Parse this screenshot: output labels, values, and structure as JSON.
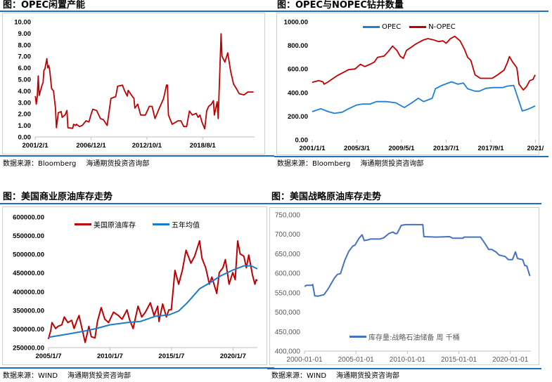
{
  "charts": [
    {
      "title": "图：OPEC闲置产能",
      "source": "数据来源：Bloomberg",
      "org": "海通期货投资咨询部",
      "chart_data": {
        "type": "line",
        "title": "图：OPEC闲置产能",
        "xlim": [
          2001.08,
          2024.0
        ],
        "ylim": [
          0,
          10
        ],
        "x_ticks": [
          2001.08,
          2006.92,
          2012.75,
          2018.58
        ],
        "x_tick_labels": [
          "2001/2/1",
          "2006/12/1",
          "2012/10/1",
          "2018/8/1"
        ],
        "y_ticks": [
          0,
          1,
          2,
          3,
          4,
          5,
          6,
          7,
          8,
          9,
          10
        ],
        "y_tick_labels": [
          "0.00",
          "1.00",
          "2.00",
          "3.00",
          "4.00",
          "5.00",
          "6.00",
          "7.00",
          "8.00",
          "9.00",
          "10.00"
        ],
        "legend": "none",
        "series": [
          {
            "name": "OPEC闲置产能",
            "color": "#C00000",
            "x": [
              2001.1,
              2001.2,
              2001.3,
              2001.4,
              2001.5,
              2001.8,
              2001.9,
              2002.0,
              2002.1,
              2002.3,
              2002.4,
              2002.5,
              2002.6,
              2002.8,
              2003.0,
              2003.2,
              2003.3,
              2003.5,
              2003.8,
              2003.9,
              2004.2,
              2004.4,
              2004.5,
              2005.0,
              2005.1,
              2005.3,
              2005.4,
              2005.7,
              2006.0,
              2006.4,
              2006.7,
              2006.9,
              2007.1,
              2007.5,
              2007.9,
              2008.2,
              2008.6,
              2009.0,
              2009.5,
              2009.7,
              2010.2,
              2010.4,
              2010.7,
              2010.8,
              2011.2,
              2011.4,
              2011.5,
              2011.8,
              2012.1,
              2012.6,
              2013.0,
              2013.3,
              2013.6,
              2014.0,
              2014.5,
              2014.8,
              2014.9,
              2015.0,
              2015.4,
              2016.0,
              2016.3,
              2016.6,
              2016.9,
              2017.2,
              2017.5,
              2017.9,
              2018.1,
              2018.3,
              2018.5,
              2018.8,
              2019.0,
              2019.2,
              2019.5,
              2019.7,
              2019.8,
              2020.1,
              2020.2,
              2020.5,
              2020.6,
              2020.9,
              2021.2,
              2021.5,
              2021.8,
              2022.1,
              2022.4,
              2022.9,
              2023.3,
              2023.9
            ],
            "y": [
              3.55,
              2.85,
              3.5,
              5.3,
              3.6,
              4.5,
              4.7,
              5.8,
              5.9,
              6.8,
              6.0,
              6.2,
              5.8,
              4.2,
              4.0,
              2.5,
              0.8,
              2.1,
              2.2,
              1.7,
              1.9,
              2.3,
              0.8,
              0.75,
              1.1,
              1.0,
              1.1,
              0.9,
              1.0,
              1.4,
              1.3,
              1.9,
              2.4,
              2.3,
              1.6,
              1.5,
              1.0,
              3.35,
              3.5,
              4.4,
              4.5,
              4.05,
              3.55,
              4.05,
              3.55,
              3.35,
              2.5,
              2.85,
              1.9,
              1.9,
              2.65,
              2.65,
              1.6,
              2.4,
              3.35,
              4.5,
              4.5,
              1.9,
              1.1,
              1.4,
              1.4,
              0.9,
              0.9,
              2.25,
              1.9,
              2.05,
              1.7,
              1.9,
              1.3,
              0.7,
              2.25,
              2.65,
              2.85,
              3.15,
              1.9,
              3.05,
              1.6,
              8.95,
              7.0,
              6.5,
              7.3,
              5.7,
              4.6,
              4.2,
              3.75,
              3.65,
              3.9,
              3.9
            ]
          }
        ]
      }
    },
    {
      "title": "图：OPEC与NOPEC钻井数量",
      "source": "数据来源：Bloomberg",
      "org": "海通期货投资咨询部",
      "chart_data": {
        "type": "line",
        "title": "图：OPEC与NOPEC钻井数量",
        "xlim": [
          2001.0,
          2022.0
        ],
        "ylim": [
          0,
          1000
        ],
        "x_ticks": [
          2001.0,
          2005.17,
          2009.33,
          2013.5,
          2017.67,
          2021.83
        ],
        "x_tick_labels": [
          "2001/1/1",
          "2005/3/1",
          "2009/5/1",
          "2013/7/1",
          "2017/9/1",
          "2021/"
        ],
        "y_ticks": [
          0,
          200,
          400,
          600,
          800,
          1000
        ],
        "y_tick_labels": [
          "0.00",
          "200.00",
          "400.00",
          "600.00",
          "800.00",
          "1000.00"
        ],
        "legend": "top",
        "series": [
          {
            "name": "OPEC",
            "color": "#1F7FD6",
            "x": [
              2001.0,
              2001.8,
              2002.5,
              2003.1,
              2003.8,
              2004.4,
              2005.1,
              2005.7,
              2006.4,
              2007.0,
              2007.9,
              2008.8,
              2009.6,
              2010.3,
              2010.9,
              2011.4,
              2012.2,
              2012.5,
              2013.1,
              2014.0,
              2014.6,
              2015.1,
              2015.5,
              2016.2,
              2016.6,
              2017.2,
              2017.9,
              2018.8,
              2019.2,
              2019.8,
              2020.2,
              2020.6,
              2021.0,
              2021.5,
              2021.8
            ],
            "y": [
              238,
              263,
              238,
              224,
              234,
              263,
              293,
              303,
              303,
              323,
              323,
              313,
              273,
              313,
              352,
              323,
              352,
              432,
              461,
              491,
              471,
              481,
              432,
              412,
              412,
              436,
              442,
              442,
              455,
              461,
              352,
              244,
              254,
              273,
              287
            ]
          },
          {
            "name": "N-OPEC",
            "color": "#C00000",
            "x": [
              2001.0,
              2001.6,
              2002.0,
              2002.1,
              2002.5,
              2002.8,
              2003.3,
              2003.9,
              2004.4,
              2005.0,
              2005.5,
              2005.9,
              2006.4,
              2006.8,
              2007.1,
              2007.7,
              2008.1,
              2008.5,
              2008.9,
              2009.2,
              2009.5,
              2009.8,
              2010.3,
              2010.6,
              2011.0,
              2011.4,
              2011.8,
              2012.3,
              2012.8,
              2013.2,
              2013.5,
              2013.9,
              2014.3,
              2014.8,
              2015.2,
              2015.5,
              2015.8,
              2016.2,
              2016.7,
              2017.2,
              2017.8,
              2018.3,
              2018.9,
              2019.2,
              2019.4,
              2019.7,
              2020.1,
              2020.3,
              2020.7,
              2021.0,
              2021.3,
              2021.6,
              2021.8
            ],
            "y": [
              487,
              501,
              491,
              471,
              491,
              511,
              541,
              570,
              594,
              600,
              640,
              620,
              640,
              659,
              699,
              709,
              748,
              794,
              758,
              709,
              689,
              758,
              788,
              808,
              828,
              847,
              857,
              847,
              832,
              838,
              818,
              857,
              877,
              838,
              768,
              699,
              673,
              550,
              521,
              521,
              521,
              550,
              590,
              650,
              705,
              659,
              610,
              471,
              422,
              451,
              501,
              511,
              550
            ]
          }
        ]
      }
    },
    {
      "title": "图：美国商业原油库存走势",
      "source": "数据来源：WIND",
      "org": "海通期货投资咨询部",
      "chart_data": {
        "type": "line",
        "title": "图：美国商业原油库存走势",
        "xlim": [
          2005.02,
          2022.0
        ],
        "ylim": [
          250000,
          600000
        ],
        "x_ticks": [
          2005.02,
          2010.02,
          2015.02,
          2020.02
        ],
        "x_tick_labels": [
          "2005/1/7",
          "2010/1/7",
          "2015/1/7",
          "2020/1/7"
        ],
        "y_ticks": [
          250000,
          300000,
          350000,
          400000,
          450000,
          500000,
          550000,
          600000
        ],
        "y_tick_labels": [
          "250000.00",
          "300000.00",
          "350000.00",
          "400000.00",
          "450000.00",
          "500000.00",
          "550000.00",
          "600000.00"
        ],
        "legend": "top",
        "series": [
          {
            "name": "美国原油库存",
            "color": "#C00000",
            "x": [
              2005.0,
              2005.2,
              2005.3,
              2005.6,
              2005.8,
              2006.1,
              2006.3,
              2006.6,
              2006.9,
              2007.1,
              2007.3,
              2007.5,
              2007.7,
              2008.0,
              2008.3,
              2008.5,
              2008.8,
              2009.0,
              2009.3,
              2009.6,
              2009.9,
              2010.3,
              2010.7,
              2011.0,
              2011.4,
              2011.6,
              2011.9,
              2012.3,
              2012.6,
              2012.9,
              2013.3,
              2013.6,
              2013.9,
              2014.0,
              2014.3,
              2014.6,
              2014.8,
              2015.0,
              2015.3,
              2015.6,
              2015.9,
              2016.2,
              2016.6,
              2016.9,
              2017.3,
              2017.5,
              2017.8,
              2018.1,
              2018.3,
              2018.7,
              2018.9,
              2019.2,
              2019.4,
              2019.7,
              2020.0,
              2020.2,
              2020.4,
              2020.6,
              2020.9,
              2021.1,
              2021.3,
              2021.6,
              2021.8,
              2021.9,
              2022.0
            ],
            "y": [
              273000,
              295000,
              317000,
              301000,
              307000,
              311000,
              332000,
              317000,
              323000,
              301000,
              320000,
              336000,
              307000,
              264000,
              307000,
              279000,
              276000,
              320000,
              357000,
              326000,
              317000,
              345000,
              336000,
              326000,
              351000,
              326000,
              301000,
              361000,
              332000,
              345000,
              370000,
              336000,
              361000,
              320000,
              367000,
              332000,
              351000,
              351000,
              457000,
              420000,
              457000,
              511000,
              476000,
              495000,
              536000,
              489000,
              464000,
              420000,
              439000,
              395000,
              451000,
              464000,
              486000,
              420000,
              451000,
              432000,
              536000,
              501000,
              495000,
              464000,
              498000,
              445000,
              420000,
              432000,
              429000
            ]
          },
          {
            "name": "五年均值",
            "color": "#1B7CC9",
            "x": [
              2005.0,
              2006.8,
              2007.9,
              2008.9,
              2010.0,
              2011.4,
              2012.5,
              2013.7,
              2014.8,
              2015.6,
              2016.3,
              2017.3,
              2018.1,
              2019.0,
              2020.0,
              2020.9,
              2021.5,
              2022.0
            ],
            "y": [
              277500,
              287500,
              294000,
              301000,
              311000,
              317000,
              320000,
              334000,
              337500,
              348000,
              370000,
              407500,
              423000,
              442000,
              457500,
              469000,
              469000,
              461000
            ]
          }
        ]
      }
    },
    {
      "title": "图：美国战略原油库存走势",
      "source": "数据来源：WIND",
      "org": "海通期货投资咨询部",
      "chart_data": {
        "type": "line",
        "title": "图：美国战略原油库存走势",
        "xlim": [
          2000.0,
          2022.0
        ],
        "ylim": [
          400000,
          750000
        ],
        "x_ticks": [
          2000.0,
          2005.0,
          2010.0,
          2015.0,
          2020.0
        ],
        "x_tick_labels": [
          "2000-01-01",
          "2005-01-01",
          "2010-01-01",
          "2015-01-01",
          "2020-01-01"
        ],
        "y_ticks": [
          400000,
          450000,
          500000,
          550000,
          600000,
          650000,
          700000,
          750000
        ],
        "y_tick_labels": [
          "400,000",
          "450,000",
          "500,000",
          "550,000",
          "600,000",
          "650,000",
          "700,000",
          "750,000"
        ],
        "legend": "bottom",
        "series": [
          {
            "name": "库存量:战略石油储备 周 千桶",
            "color": "#4472C4",
            "x": [
              2000.0,
              2000.2,
              2000.7,
              2000.8,
              2001.0,
              2001.3,
              2001.9,
              2002.3,
              2002.9,
              2003.2,
              2003.5,
              2003.9,
              2004.3,
              2004.7,
              2004.9,
              2005.3,
              2005.6,
              2005.8,
              2006.2,
              2006.4,
              2007.3,
              2007.7,
              2008.2,
              2008.6,
              2008.8,
              2009.0,
              2009.4,
              2009.8,
              2011.5,
              2011.6,
              2012.8,
              2014.1,
              2014.4,
              2015.4,
              2015.5,
              2017.1,
              2017.5,
              2017.9,
              2018.2,
              2018.6,
              2018.9,
              2019.5,
              2019.8,
              2020.2,
              2020.5,
              2020.7,
              2021.2,
              2021.4,
              2021.6,
              2021.9
            ],
            "y": [
              566000,
              569000,
              569000,
              571000,
              542000,
              541000,
              545000,
              560000,
              587000,
              597000,
              599000,
              632000,
              656000,
              670000,
              672000,
              690000,
              699000,
              684000,
              686000,
              688000,
              688000,
              691000,
              702000,
              706000,
              702000,
              702000,
              723000,
              725000,
              725000,
              694000,
              693000,
              694000,
              690000,
              690000,
              693000,
              693000,
              678000,
              661000,
              661000,
              655000,
              647000,
              643000,
              635000,
              635000,
              655000,
              638000,
              635000,
              620000,
              619000,
              593000
            ]
          }
        ]
      }
    }
  ]
}
